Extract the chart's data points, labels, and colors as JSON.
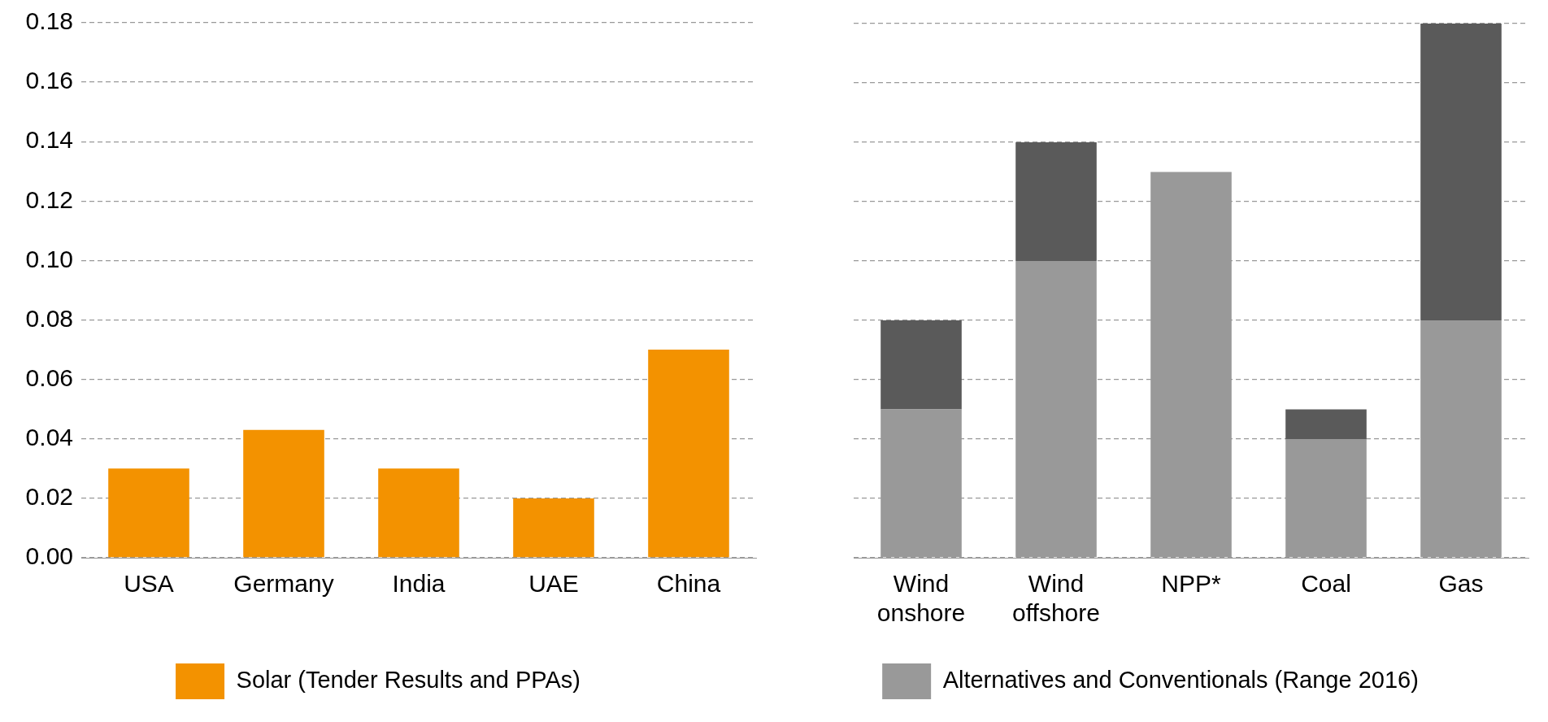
{
  "chart_data": [
    {
      "type": "bar",
      "categories": [
        "USA",
        "Germany",
        "India",
        "UAE",
        "China"
      ],
      "series": [
        {
          "name": "Solar (Tender Results and PPAs)",
          "color": "#f39200",
          "values": [
            0.03,
            0.043,
            0.03,
            0.02,
            0.07
          ]
        }
      ],
      "ylim": [
        0,
        0.18
      ],
      "yticks": [
        {
          "value": 0,
          "label": "0.00"
        },
        {
          "value": 0.02,
          "label": "0.02"
        },
        {
          "value": 0.04,
          "label": "0.04"
        },
        {
          "value": 0.06,
          "label": "0.06"
        },
        {
          "value": 0.08,
          "label": "0.08"
        },
        {
          "value": 0.1,
          "label": "0.10"
        },
        {
          "value": 0.12,
          "label": "0.12"
        },
        {
          "value": 0.14,
          "label": "0.14"
        },
        {
          "value": 0.16,
          "label": "0.16"
        },
        {
          "value": 0.18,
          "label": "0.18"
        }
      ],
      "grid": "y",
      "legend": "bottom"
    },
    {
      "type": "bar",
      "stacked": true,
      "categories": [
        "Wind onshore",
        "Wind offshore",
        "NPP*",
        "Coal",
        "Gas"
      ],
      "series": [
        {
          "name": "Alternatives and Conventionals (Range 2016)",
          "color": "#999999",
          "values": [
            0.05,
            0.1,
            0.13,
            0.04,
            0.08
          ]
        },
        {
          "color": "#5a5a5a",
          "values": [
            0.03,
            0.04,
            null,
            0.01,
            0.1
          ]
        }
      ],
      "ylim": [
        0,
        0.18
      ],
      "yticks": [
        {
          "value": 0,
          "label": null
        },
        {
          "value": 0.02,
          "label": null
        },
        {
          "value": 0.04,
          "label": null
        },
        {
          "value": 0.06,
          "label": null
        },
        {
          "value": 0.08,
          "label": null
        },
        {
          "value": 0.1,
          "label": null
        },
        {
          "value": 0.12,
          "label": null
        },
        {
          "value": 0.14,
          "label": null
        },
        {
          "value": 0.16,
          "label": null
        },
        {
          "value": 0.18,
          "label": null
        }
      ],
      "grid": "y",
      "legend": "bottom",
      "tick_labels": "x"
    }
  ]
}
